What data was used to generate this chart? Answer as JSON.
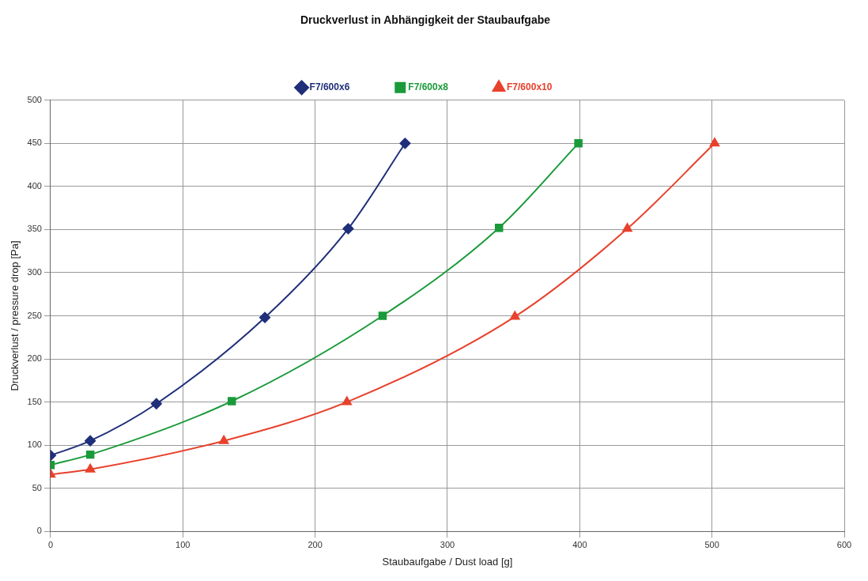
{
  "chart_data": {
    "type": "line",
    "title": "Druckverlust in Abhängigkeit der Staubaufgabe",
    "xlabel": "Staubaufgabe / Dust load [g]",
    "ylabel": "Druckverlust / pressure drop [Pa]",
    "series": [
      {
        "name": "F7/600x6",
        "color": "#1f2f7a",
        "marker": "diamond",
        "x": [
          0,
          30,
          80,
          162,
          225,
          268
        ],
        "values": [
          88,
          105,
          148,
          248,
          351,
          450
        ]
      },
      {
        "name": "F7/600x8",
        "color": "#1a9a3a",
        "marker": "square",
        "x": [
          0,
          30,
          137,
          251,
          339,
          399
        ],
        "values": [
          77,
          89,
          151,
          250,
          352,
          450
        ]
      },
      {
        "name": "F7/600x10",
        "color": "#e8412c",
        "marker": "triangle",
        "x": [
          0,
          30,
          131,
          224,
          351,
          436,
          502
        ],
        "values": [
          66,
          72,
          105,
          150,
          249,
          351,
          450
        ]
      }
    ],
    "xlim": [
      0,
      600
    ],
    "xticks": [
      0,
      100,
      200,
      300,
      400,
      500,
      600
    ],
    "ylim": [
      0,
      500
    ],
    "yticks": [
      0,
      50,
      100,
      150,
      200,
      250,
      300,
      350,
      400,
      450,
      500
    ],
    "grid": true,
    "legend": "top",
    "line_style": "solid"
  }
}
